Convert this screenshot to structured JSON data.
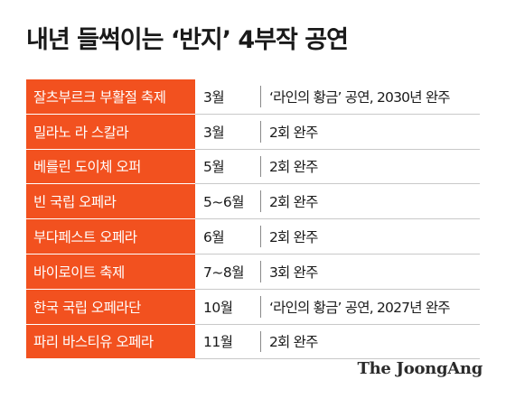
{
  "title": "내년 들썩이는 ‘반지’ 4부작 공연",
  "rows": [
    {
      "name": "잘츠부르크 부활절 축제",
      "month": "3월",
      "note": "‘라인의 황금’ 공연, 2030년 완주"
    },
    {
      "name": "밀라노 라 스칼라",
      "month": "3월",
      "note": "2회 완주"
    },
    {
      "name": "베를린 도이체 오퍼",
      "month": "5월",
      "note": "2회 완주"
    },
    {
      "name": "빈 국립 오페라",
      "month": "5~6월",
      "note": "2회 완주"
    },
    {
      "name": "부다페스트 오페라",
      "month": "6월",
      "note": "2회 완주"
    },
    {
      "name": "바이로이트 축제",
      "month": "7~8월",
      "note": "3회 완주"
    },
    {
      "name": "한국 국립 오페라단",
      "month": "10월",
      "note": "‘라인의 황금’ 공연, 2027년 완주"
    },
    {
      "name": "파리 바스티유 오페라",
      "month": "11월",
      "note": "2회 완주"
    }
  ],
  "source_logo": "The JoongAng",
  "colors": {
    "accent": "#f2511f",
    "text": "#1a1a1a",
    "divider": "#c9c9c9"
  }
}
